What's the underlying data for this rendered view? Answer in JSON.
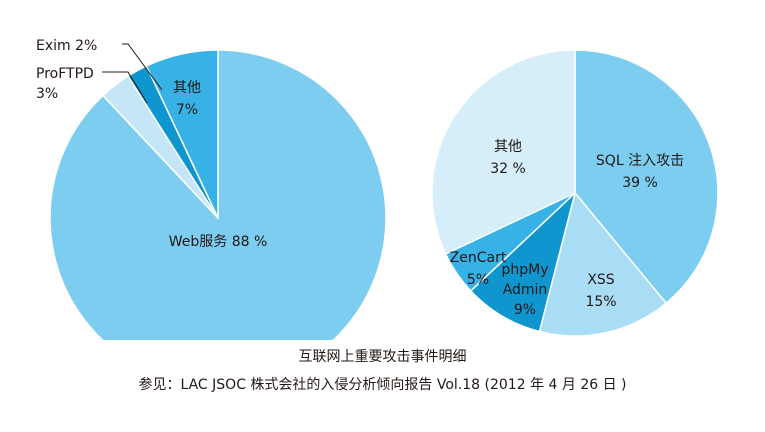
{
  "chart_data": [
    {
      "type": "pie",
      "name": "left-pie",
      "slices": [
        {
          "label": "Web服务",
          "value": 88,
          "value_label": "88 %",
          "color": "#7ccdf0"
        },
        {
          "label": "ProFTPD",
          "value": 3,
          "value_label": "3%",
          "color": "#c5e6f7"
        },
        {
          "label": "Exim",
          "value": 2,
          "value_label": "2%",
          "color": "#0f96cf"
        },
        {
          "label": "其他",
          "value": 7,
          "value_label": "7%",
          "color": "#36b2e6"
        }
      ]
    },
    {
      "type": "pie",
      "name": "right-pie",
      "slices": [
        {
          "label": "SQL 注入攻击",
          "value": 39,
          "value_label": "39 %",
          "color": "#7ccdf0"
        },
        {
          "label": "XSS",
          "value": 15,
          "value_label": "15%",
          "color": "#a9dcf5"
        },
        {
          "label": "phpMy Admin",
          "value": 9,
          "value_label": "9%",
          "color": "#0f96cf"
        },
        {
          "label": "ZenCart",
          "value": 5,
          "value_label": "5%",
          "color": "#36b2e6"
        },
        {
          "label": "其他",
          "value": 32,
          "value_label": "32 %",
          "color": "#d6eefa"
        }
      ]
    }
  ],
  "caption": {
    "title": "互联网上重要攻击事件明细",
    "source": "参见：LAC JSOC 株式会社的入侵分析倾向报告 Vol.18 (2012 年 4 月 26 日 )"
  },
  "colors": {
    "stroke": "#ffffff",
    "leader": "#231815",
    "text": "#231815"
  }
}
